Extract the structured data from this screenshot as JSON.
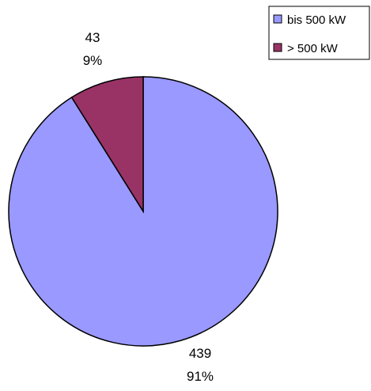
{
  "chart_data": {
    "type": "pie",
    "slices": [
      {
        "label": "bis 500 kW",
        "value": 439,
        "percent": "91%",
        "color": "#9999ff"
      },
      {
        "label": "> 500 kW",
        "value": 43,
        "percent": "9%",
        "color": "#993366"
      }
    ],
    "legend_position": "top-right"
  }
}
